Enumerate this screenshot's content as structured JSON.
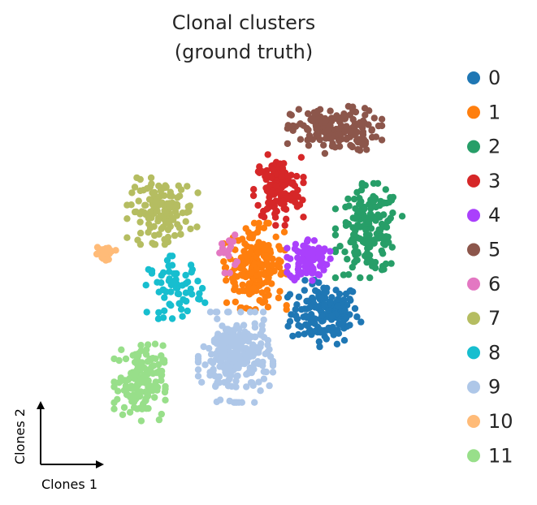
{
  "chart_data": {
    "type": "scatter",
    "title_lines": [
      "Clonal clusters",
      "(ground truth)"
    ],
    "xlabel": "Clones 1",
    "ylabel": "Clones 2",
    "xlim": [
      -13,
      11
    ],
    "ylim": [
      -10,
      13
    ],
    "legend_position": "right",
    "grid": false,
    "series": [
      {
        "name": "0",
        "color": "#1f77b4",
        "center": [
          4.0,
          -1.3
        ],
        "spread": [
          1.9,
          1.7
        ],
        "n": 160
      },
      {
        "name": "1",
        "color": "#ff7f0e",
        "center": [
          -0.3,
          1.6
        ],
        "spread": [
          1.6,
          2.2
        ],
        "n": 200
      },
      {
        "name": "2",
        "color": "#279e68",
        "center": [
          6.7,
          3.8
        ],
        "spread": [
          1.7,
          2.4
        ],
        "n": 170
      },
      {
        "name": "3",
        "color": "#d62728",
        "center": [
          1.1,
          6.3
        ],
        "spread": [
          1.3,
          1.8
        ],
        "n": 130
      },
      {
        "name": "4",
        "color": "#aa40fc",
        "center": [
          3.0,
          2.0
        ],
        "spread": [
          1.1,
          1.2
        ],
        "n": 90
      },
      {
        "name": "5",
        "color": "#8c564b",
        "center": [
          4.6,
          10.0
        ],
        "spread": [
          2.4,
          1.2
        ],
        "n": 170
      },
      {
        "name": "6",
        "color": "#e377c2",
        "center": [
          -2.0,
          2.4
        ],
        "spread": [
          0.5,
          1.0
        ],
        "n": 14
      },
      {
        "name": "7",
        "color": "#b5bd61",
        "center": [
          -6.0,
          5.0
        ],
        "spread": [
          1.8,
          1.7
        ],
        "n": 140
      },
      {
        "name": "8",
        "color": "#17becf",
        "center": [
          -5.2,
          0.3
        ],
        "spread": [
          1.5,
          1.6
        ],
        "n": 65
      },
      {
        "name": "9",
        "color": "#aec7e8",
        "center": [
          -1.5,
          -4.0
        ],
        "spread": [
          1.9,
          2.3
        ],
        "n": 250
      },
      {
        "name": "10",
        "color": "#ffbb78",
        "center": [
          -9.6,
          2.4
        ],
        "spread": [
          0.6,
          0.4
        ],
        "n": 24
      },
      {
        "name": "11",
        "color": "#98df8a",
        "center": [
          -7.4,
          -5.5
        ],
        "spread": [
          1.3,
          2.0
        ],
        "n": 150
      }
    ]
  }
}
